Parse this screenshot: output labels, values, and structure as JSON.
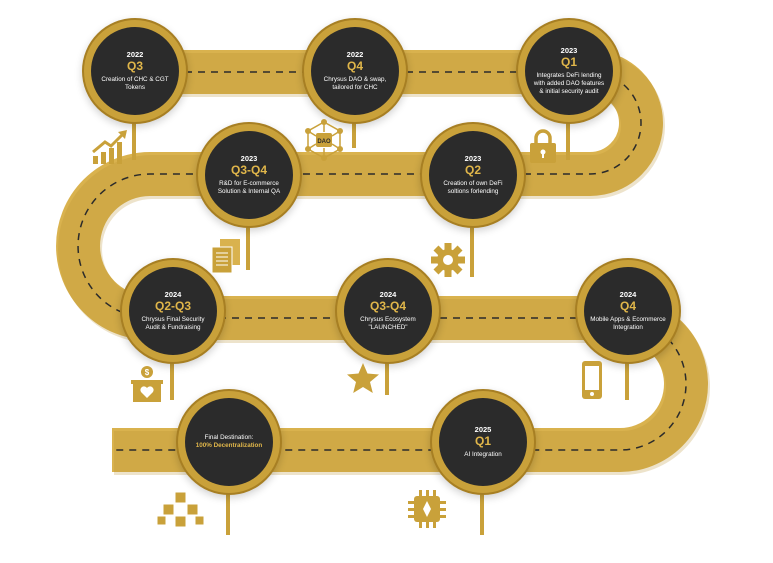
{
  "colors": {
    "road": "#d9b24e",
    "road_dark": "#b8912f",
    "circle": "#2b2b2b",
    "accent": "#e0b64a"
  },
  "milestones": [
    {
      "year": "2022",
      "quarter": "Q3",
      "desc": "Creation of CHC & CGT Tokens",
      "icon": "growth-chart-icon"
    },
    {
      "year": "2022",
      "quarter": "Q4",
      "desc": "Chrysus DAO & swap, tailored for CHC",
      "icon": "dao-network-icon",
      "icon_label": "DAO"
    },
    {
      "year": "2023",
      "quarter": "Q1",
      "desc": "Integrates DeFi lending with added DAO features & initial security audit",
      "icon": "lock-icon"
    },
    {
      "year": "2023",
      "quarter": "Q3-Q4",
      "desc": "R&D for E-commerce Solution & Internal QA",
      "icon": "documents-icon"
    },
    {
      "year": "2023",
      "quarter": "Q2",
      "desc": "Creation of own DeFi soltions forlending",
      "icon": "gear-icon"
    },
    {
      "year": "2024",
      "quarter": "Q2-Q3",
      "desc": "Chrysus Final Security Audit & Fundraising",
      "icon": "donation-box-icon"
    },
    {
      "year": "2024",
      "quarter": "Q3-Q4",
      "desc": "Chrysus Ecosystem \"LAUNCHED\"",
      "icon": "star-icon"
    },
    {
      "year": "2024",
      "quarter": "Q4",
      "desc": "Mobile Apps & Ecommerce Integration",
      "icon": "smartphone-icon"
    },
    {
      "year": "",
      "quarter": "",
      "desc": "Final Destination:",
      "desc_highlight": "100% Decentralization",
      "icon": "blockchain-blocks-icon"
    },
    {
      "year": "2025",
      "quarter": "Q1",
      "desc": "AI Integration",
      "icon": "ai-chip-icon"
    }
  ]
}
